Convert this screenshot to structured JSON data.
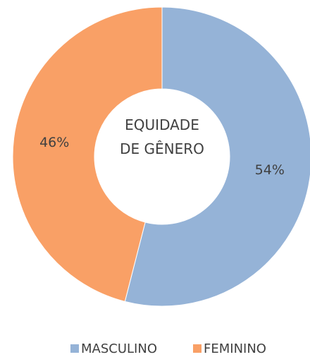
{
  "chart_data": {
    "type": "donut",
    "title": "EQUIDADE DE GÊNERO",
    "categories": [
      "MASCULINO",
      "FEMININO"
    ],
    "values": [
      54,
      46
    ],
    "value_labels": [
      "54%",
      "46%"
    ],
    "colors": [
      "#95b3d7",
      "#f9a066"
    ],
    "legend": "bottom"
  }
}
